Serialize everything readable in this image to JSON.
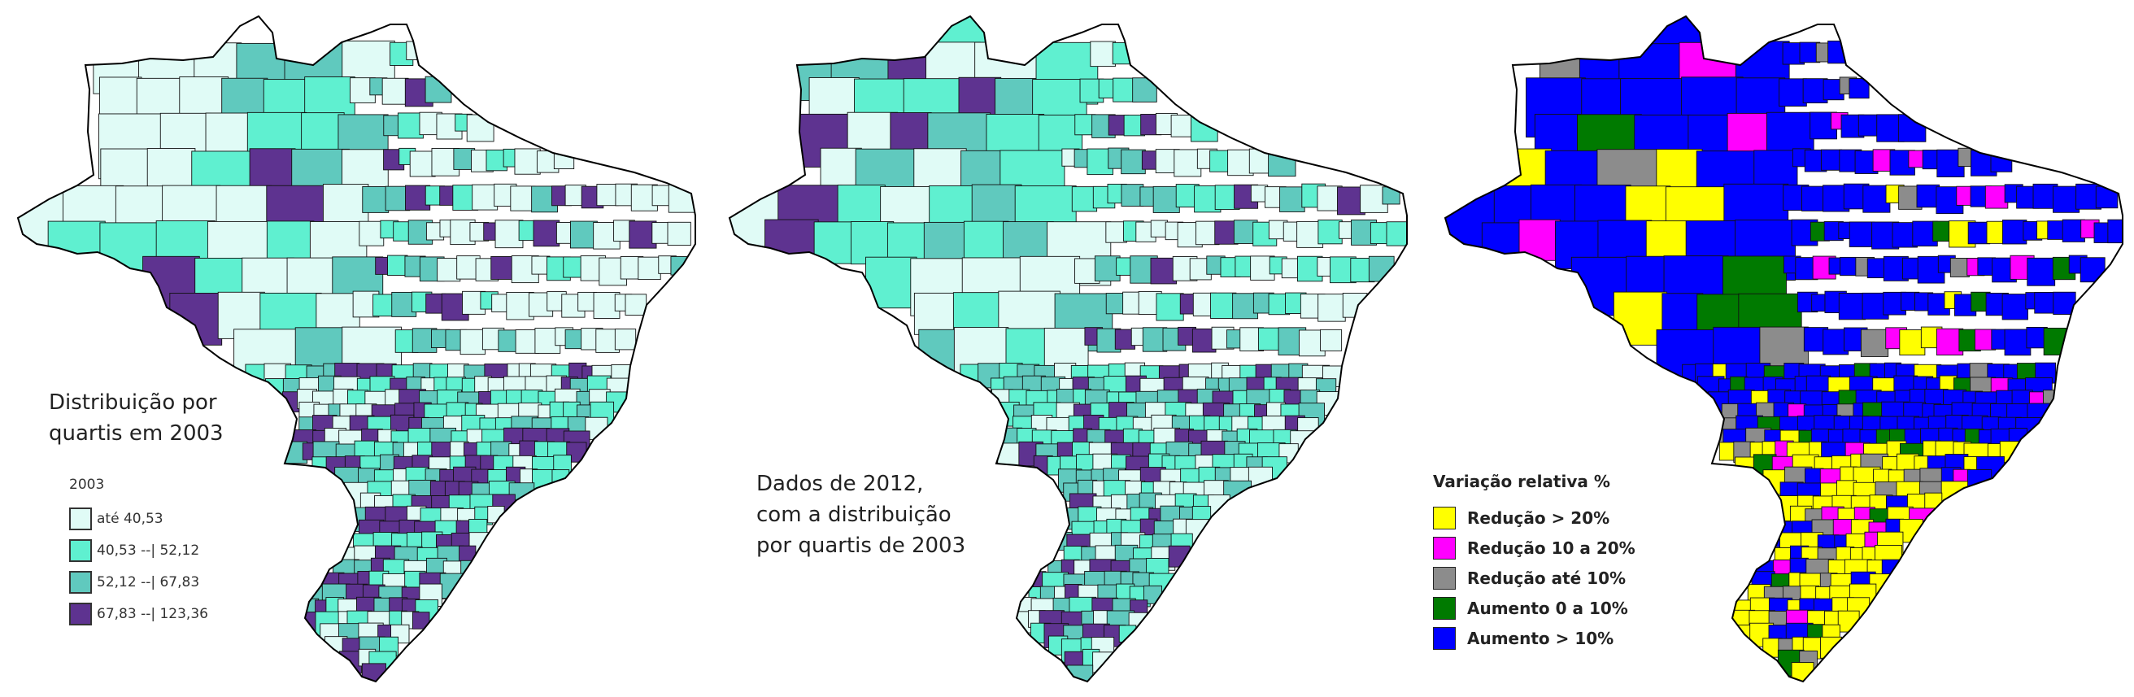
{
  "maps": [
    {
      "id": "map1",
      "caption": [
        "Distribuição por",
        "quartis em 2003"
      ],
      "legend": {
        "title": "2003",
        "items": [
          {
            "label": "até 40,53",
            "color": "#e0fbf6"
          },
          {
            "label": "40,53 --| 52,12",
            "color": "#5ff0d0"
          },
          {
            "label": "52,12 --| 67,83",
            "color": "#60c9be"
          },
          {
            "label": "67,83 --| 123,36",
            "color": "#5e3390"
          }
        ]
      }
    },
    {
      "id": "map2",
      "caption": [
        "Dados de 2012,",
        "com a distribuição",
        "por quartis de 2003"
      ]
    },
    {
      "id": "map3",
      "legend": {
        "title": "Variação relativa %",
        "items": [
          {
            "label": "Redução > 20%",
            "color": "#ffff00"
          },
          {
            "label": "Redução 10 a 20%",
            "color": "#ff00ff"
          },
          {
            "label": "Redução até 10%",
            "color": "#8c8c8c"
          },
          {
            "label": "Aumento 0 a 10%",
            "color": "#007a00"
          },
          {
            "label": "Aumento > 10%",
            "color": "#0000ff"
          }
        ]
      }
    }
  ]
}
